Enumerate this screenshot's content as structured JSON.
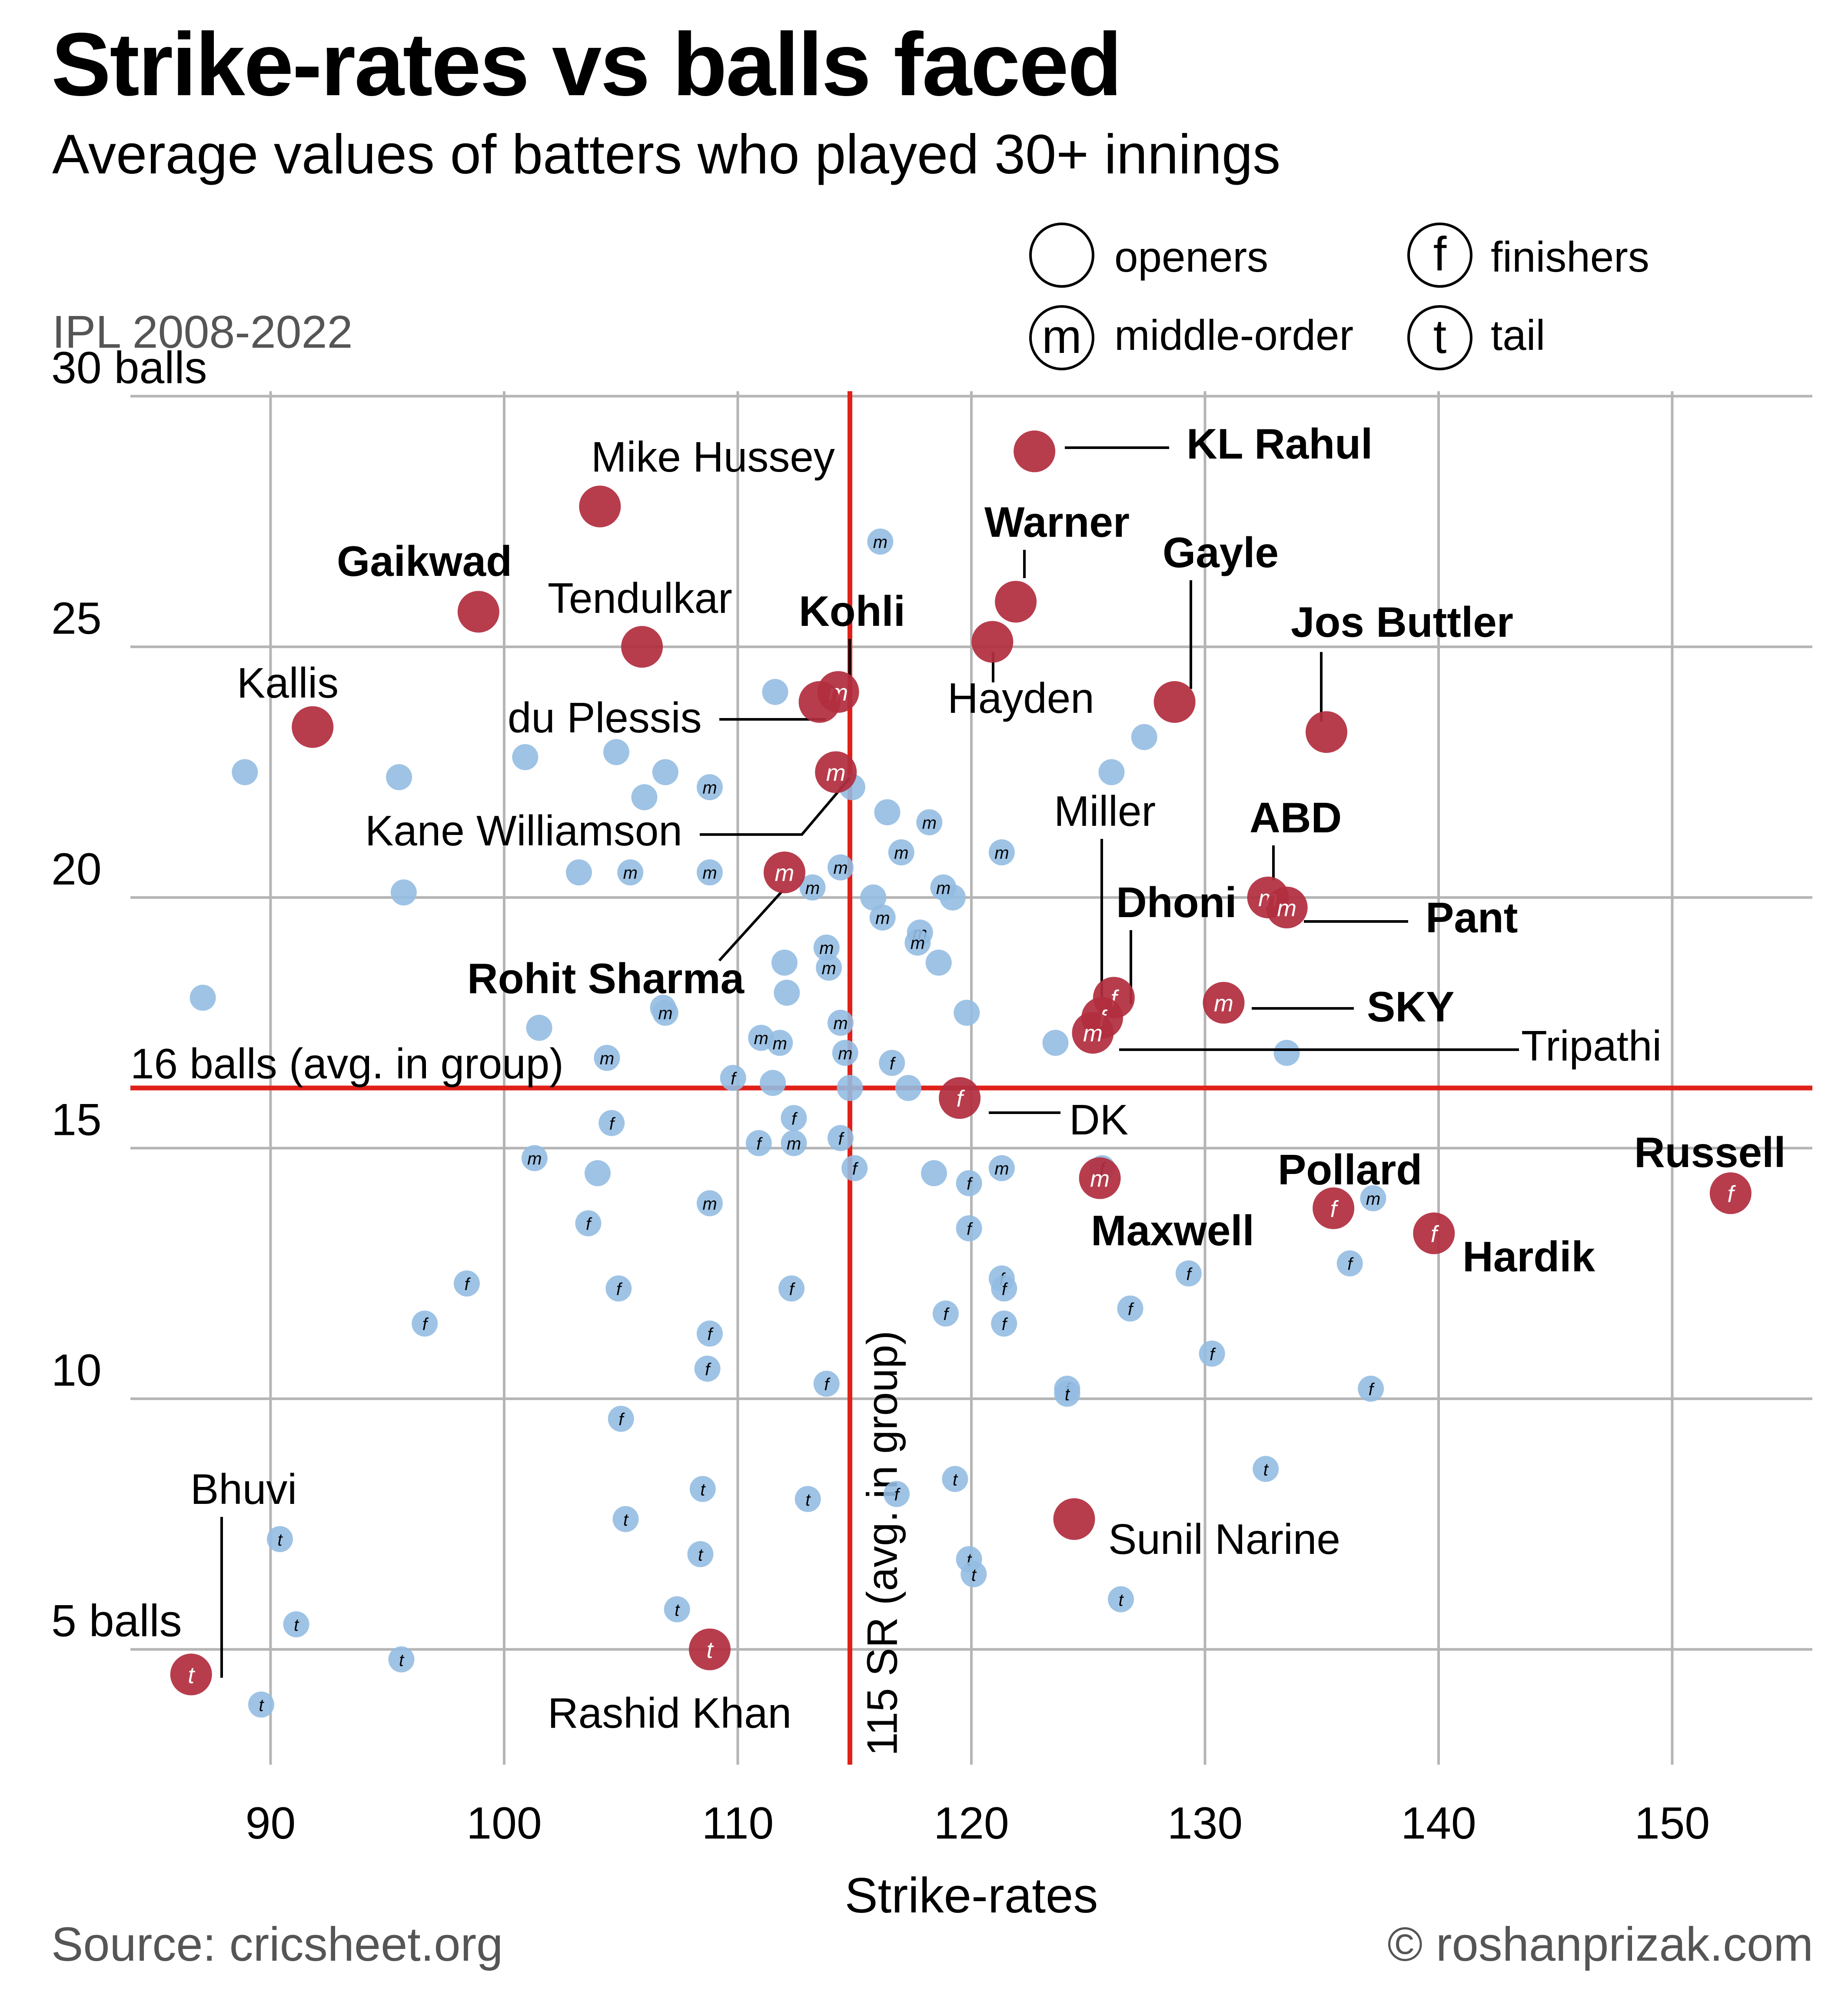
{
  "title": "Strike-rates vs balls faced",
  "subtitle": "Average values of batters who played 30+ innings",
  "period": "IPL 2008-2022",
  "source": "Source: cricsheet.org",
  "credit": "© roshanprizak.com",
  "legend": [
    {
      "symbol": "",
      "label": "openers"
    },
    {
      "symbol": "m",
      "label": "middle-order"
    },
    {
      "symbol": "f",
      "label": "finishers"
    },
    {
      "symbol": "t",
      "label": "tail"
    }
  ],
  "colors": {
    "highlight": "#b22e40",
    "others": "#93bde2",
    "reference": "#e0211a",
    "grid": "#b5b5b5"
  },
  "chart_data": {
    "type": "scatter",
    "xlabel": "Strike-rates",
    "xlim": [
      84,
      156
    ],
    "ylim": [
      2.7,
      30.1
    ],
    "xticks": [
      90,
      100,
      110,
      120,
      130,
      140,
      150
    ],
    "yticks": [
      5,
      10,
      15,
      20,
      25,
      30
    ],
    "ytick_labels": [
      "5 balls",
      "10",
      "15",
      "20",
      "25",
      "30 balls"
    ],
    "reference_lines": [
      {
        "axis": "x",
        "value": 114.8,
        "label": "115 SR (avg. in group)"
      },
      {
        "axis": "y",
        "value": 16.2,
        "label": "16 balls (avg. in group)"
      }
    ],
    "highlighted": [
      {
        "name": "KL Rahul",
        "x": 122.7,
        "y": 28.9,
        "role": "",
        "bold": true
      },
      {
        "name": "Mike Hussey",
        "x": 104.1,
        "y": 27.8,
        "role": "",
        "bold": false
      },
      {
        "name": "Gaikwad",
        "x": 98.9,
        "y": 25.7,
        "role": "",
        "bold": true
      },
      {
        "name": "Tendulkar",
        "x": 105.9,
        "y": 25.0,
        "role": "",
        "bold": false
      },
      {
        "name": "Warner",
        "x": 121.9,
        "y": 25.9,
        "role": "",
        "bold": true
      },
      {
        "name": "Hayden",
        "x": 120.9,
        "y": 25.1,
        "role": "",
        "bold": false
      },
      {
        "name": "Kohli",
        "x": 114.3,
        "y": 24.1,
        "role": "m",
        "bold": true
      },
      {
        "name": "du Plessis",
        "x": 113.5,
        "y": 23.9,
        "role": "",
        "bold": false
      },
      {
        "name": "Gayle",
        "x": 128.7,
        "y": 23.9,
        "role": "",
        "bold": true
      },
      {
        "name": "Jos Buttler",
        "x": 135.2,
        "y": 23.3,
        "role": "",
        "bold": true
      },
      {
        "name": "Kallis",
        "x": 91.8,
        "y": 23.4,
        "role": "",
        "bold": false
      },
      {
        "name": "Kane Williamson",
        "x": 114.2,
        "y": 22.5,
        "role": "m",
        "bold": false
      },
      {
        "name": "Rohit Sharma",
        "x": 112.0,
        "y": 20.5,
        "role": "m",
        "bold": true
      },
      {
        "name": "ABD",
        "x": 132.7,
        "y": 20.0,
        "role": "m",
        "bold": true
      },
      {
        "name": "Pant",
        "x": 133.5,
        "y": 19.8,
        "role": "m",
        "bold": true
      },
      {
        "name": "Dhoni",
        "x": 126.1,
        "y": 18.0,
        "role": "f",
        "bold": true
      },
      {
        "name": "Miller",
        "x": 125.6,
        "y": 17.6,
        "role": "f",
        "bold": false
      },
      {
        "name": "Tripathi",
        "x": 125.2,
        "y": 17.3,
        "role": "m",
        "bold": false
      },
      {
        "name": "SKY",
        "x": 130.8,
        "y": 17.9,
        "role": "m",
        "bold": true
      },
      {
        "name": "DK",
        "x": 119.5,
        "y": 16.0,
        "role": "f",
        "bold": false
      },
      {
        "name": "Maxwell",
        "x": 125.5,
        "y": 14.4,
        "role": "m",
        "bold": true
      },
      {
        "name": "Pollard",
        "x": 135.5,
        "y": 13.8,
        "role": "f",
        "bold": true
      },
      {
        "name": "Hardik",
        "x": 139.8,
        "y": 13.3,
        "role": "f",
        "bold": true
      },
      {
        "name": "Russell",
        "x": 152.5,
        "y": 14.1,
        "role": "f",
        "bold": true
      },
      {
        "name": "Sunil Narine",
        "x": 124.4,
        "y": 7.6,
        "role": "",
        "bold": false
      },
      {
        "name": "Rashid Khan",
        "x": 108.8,
        "y": 5.0,
        "role": "t",
        "bold": false
      },
      {
        "name": "Bhuvi",
        "x": 86.6,
        "y": 4.5,
        "role": "t",
        "bold": false
      }
    ],
    "others": [
      {
        "x": 88.9,
        "y": 22.5,
        "role": ""
      },
      {
        "x": 87.1,
        "y": 18.0,
        "role": ""
      },
      {
        "x": 95.5,
        "y": 22.4,
        "role": ""
      },
      {
        "x": 95.7,
        "y": 20.1,
        "role": ""
      },
      {
        "x": 100.9,
        "y": 22.8,
        "role": ""
      },
      {
        "x": 101.5,
        "y": 17.4,
        "role": ""
      },
      {
        "x": 103.2,
        "y": 20.5,
        "role": ""
      },
      {
        "x": 104.8,
        "y": 22.9,
        "role": ""
      },
      {
        "x": 106.0,
        "y": 22.0,
        "role": ""
      },
      {
        "x": 106.9,
        "y": 22.5,
        "role": ""
      },
      {
        "x": 106.8,
        "y": 17.8,
        "role": ""
      },
      {
        "x": 111.6,
        "y": 24.1,
        "role": ""
      },
      {
        "x": 112.0,
        "y": 18.7,
        "role": ""
      },
      {
        "x": 112.1,
        "y": 18.1,
        "role": ""
      },
      {
        "x": 111.5,
        "y": 16.3,
        "role": ""
      },
      {
        "x": 114.9,
        "y": 22.2,
        "role": ""
      },
      {
        "x": 116.4,
        "y": 21.7,
        "role": ""
      },
      {
        "x": 115.8,
        "y": 20.0,
        "role": ""
      },
      {
        "x": 117.3,
        "y": 16.2,
        "role": ""
      },
      {
        "x": 118.6,
        "y": 18.7,
        "role": ""
      },
      {
        "x": 119.2,
        "y": 20.0,
        "role": ""
      },
      {
        "x": 119.8,
        "y": 17.7,
        "role": ""
      },
      {
        "x": 114.8,
        "y": 16.2,
        "role": ""
      },
      {
        "x": 104.0,
        "y": 14.5,
        "role": ""
      },
      {
        "x": 118.4,
        "y": 14.5,
        "role": ""
      },
      {
        "x": 123.6,
        "y": 17.1,
        "role": ""
      },
      {
        "x": 126.0,
        "y": 22.5,
        "role": ""
      },
      {
        "x": 127.4,
        "y": 23.2,
        "role": ""
      },
      {
        "x": 133.5,
        "y": 16.9,
        "role": ""
      },
      {
        "x": 116.1,
        "y": 27.1,
        "role": "m"
      },
      {
        "x": 108.8,
        "y": 22.2,
        "role": "m"
      },
      {
        "x": 118.2,
        "y": 21.5,
        "role": "m"
      },
      {
        "x": 121.3,
        "y": 20.9,
        "role": "m"
      },
      {
        "x": 105.4,
        "y": 20.5,
        "role": "m"
      },
      {
        "x": 108.8,
        "y": 20.5,
        "role": "m"
      },
      {
        "x": 113.2,
        "y": 20.2,
        "role": "m"
      },
      {
        "x": 114.4,
        "y": 20.6,
        "role": "m"
      },
      {
        "x": 117.0,
        "y": 20.9,
        "role": "m"
      },
      {
        "x": 118.8,
        "y": 20.2,
        "role": "m"
      },
      {
        "x": 116.2,
        "y": 19.6,
        "role": "m"
      },
      {
        "x": 117.8,
        "y": 19.3,
        "role": "m"
      },
      {
        "x": 117.7,
        "y": 19.1,
        "role": "m"
      },
      {
        "x": 113.8,
        "y": 19.0,
        "role": "m"
      },
      {
        "x": 113.9,
        "y": 18.6,
        "role": "m"
      },
      {
        "x": 106.9,
        "y": 17.7,
        "role": "m"
      },
      {
        "x": 114.4,
        "y": 17.5,
        "role": "m"
      },
      {
        "x": 111.0,
        "y": 17.2,
        "role": "m"
      },
      {
        "x": 111.8,
        "y": 17.1,
        "role": "m"
      },
      {
        "x": 114.6,
        "y": 16.9,
        "role": "m"
      },
      {
        "x": 104.4,
        "y": 16.8,
        "role": "m"
      },
      {
        "x": 112.4,
        "y": 15.1,
        "role": "m"
      },
      {
        "x": 101.3,
        "y": 14.8,
        "role": "m"
      },
      {
        "x": 108.8,
        "y": 13.9,
        "role": "m"
      },
      {
        "x": 121.3,
        "y": 14.6,
        "role": "m"
      },
      {
        "x": 137.2,
        "y": 14.0,
        "role": "m"
      },
      {
        "x": 109.8,
        "y": 16.4,
        "role": "f"
      },
      {
        "x": 116.6,
        "y": 16.7,
        "role": "f"
      },
      {
        "x": 112.4,
        "y": 15.6,
        "role": "f"
      },
      {
        "x": 110.9,
        "y": 15.1,
        "role": "f"
      },
      {
        "x": 114.4,
        "y": 15.2,
        "role": "f"
      },
      {
        "x": 104.6,
        "y": 15.5,
        "role": "f"
      },
      {
        "x": 115.0,
        "y": 14.6,
        "role": "f"
      },
      {
        "x": 119.9,
        "y": 14.3,
        "role": "f"
      },
      {
        "x": 125.6,
        "y": 14.6,
        "role": "f"
      },
      {
        "x": 103.6,
        "y": 13.5,
        "role": "f"
      },
      {
        "x": 119.9,
        "y": 13.4,
        "role": "f"
      },
      {
        "x": 98.4,
        "y": 12.3,
        "role": "f"
      },
      {
        "x": 104.9,
        "y": 12.2,
        "role": "f"
      },
      {
        "x": 112.3,
        "y": 12.2,
        "role": "f"
      },
      {
        "x": 121.3,
        "y": 12.4,
        "role": "f"
      },
      {
        "x": 121.4,
        "y": 12.2,
        "role": "f"
      },
      {
        "x": 129.3,
        "y": 12.5,
        "role": "f"
      },
      {
        "x": 136.2,
        "y": 12.7,
        "role": "f"
      },
      {
        "x": 96.6,
        "y": 11.5,
        "role": "f"
      },
      {
        "x": 108.8,
        "y": 11.3,
        "role": "f"
      },
      {
        "x": 118.9,
        "y": 11.7,
        "role": "f"
      },
      {
        "x": 121.4,
        "y": 11.5,
        "role": "f"
      },
      {
        "x": 126.8,
        "y": 11.8,
        "role": "f"
      },
      {
        "x": 108.7,
        "y": 10.6,
        "role": "f"
      },
      {
        "x": 113.8,
        "y": 10.3,
        "role": "f"
      },
      {
        "x": 130.3,
        "y": 10.9,
        "role": "f"
      },
      {
        "x": 124.1,
        "y": 10.2,
        "role": "f"
      },
      {
        "x": 137.1,
        "y": 10.2,
        "role": "f"
      },
      {
        "x": 105.0,
        "y": 9.6,
        "role": "f"
      },
      {
        "x": 116.8,
        "y": 8.1,
        "role": "f"
      },
      {
        "x": 124.1,
        "y": 10.1,
        "role": "t"
      },
      {
        "x": 132.6,
        "y": 8.6,
        "role": "t"
      },
      {
        "x": 119.3,
        "y": 8.4,
        "role": "t"
      },
      {
        "x": 108.5,
        "y": 8.2,
        "role": "t"
      },
      {
        "x": 113.0,
        "y": 8.0,
        "role": "t"
      },
      {
        "x": 105.2,
        "y": 7.6,
        "role": "t"
      },
      {
        "x": 90.4,
        "y": 7.2,
        "role": "t"
      },
      {
        "x": 108.4,
        "y": 6.9,
        "role": "t"
      },
      {
        "x": 119.9,
        "y": 6.8,
        "role": "t"
      },
      {
        "x": 120.1,
        "y": 6.5,
        "role": "t"
      },
      {
        "x": 126.4,
        "y": 6.0,
        "role": "t"
      },
      {
        "x": 107.4,
        "y": 5.8,
        "role": "t"
      },
      {
        "x": 91.1,
        "y": 5.5,
        "role": "t"
      },
      {
        "x": 95.6,
        "y": 4.8,
        "role": "t"
      },
      {
        "x": 89.6,
        "y": 3.9,
        "role": "t"
      }
    ]
  }
}
